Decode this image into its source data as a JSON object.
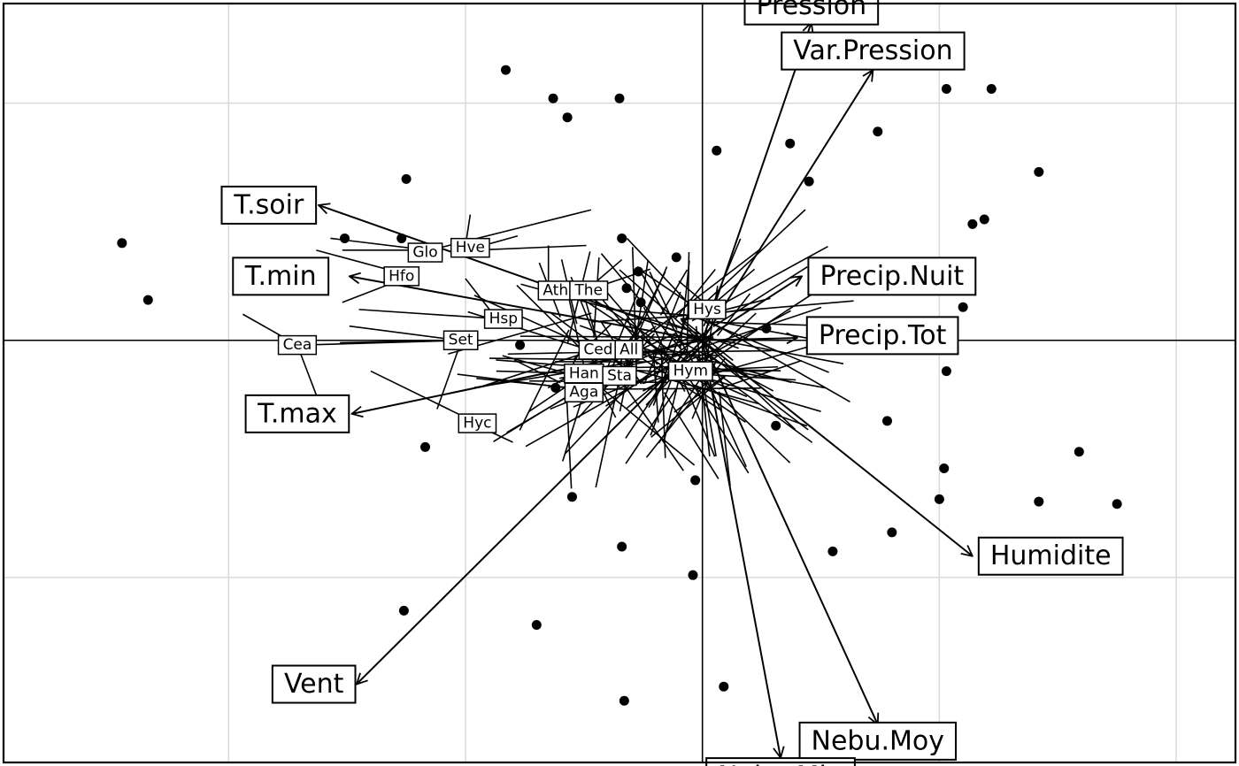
{
  "chart_data": {
    "type": "scatter",
    "title": "",
    "xlabel": "",
    "ylabel": "",
    "xlim": [
      -2.95,
      2.25
    ],
    "ylim": [
      -1.78,
      1.42
    ],
    "grid": true,
    "grid_x": [
      -2,
      -1,
      0,
      1,
      2
    ],
    "grid_y": [
      -1,
      1
    ],
    "axes_through_origin": true,
    "colors": {
      "grid": "#d9d9d9",
      "ink": "#000000",
      "label_bg": "#ffffff"
    },
    "points": [
      {
        "x": -2.45,
        "y": 0.41
      },
      {
        "x": -2.34,
        "y": 0.17
      },
      {
        "x": -1.25,
        "y": 0.68
      },
      {
        "x": -1.27,
        "y": 0.43
      },
      {
        "x": -1.51,
        "y": 0.43
      },
      {
        "x": -0.83,
        "y": 1.14
      },
      {
        "x": -0.63,
        "y": 1.02
      },
      {
        "x": -0.57,
        "y": 0.94
      },
      {
        "x": -0.35,
        "y": 1.02
      },
      {
        "x": -0.34,
        "y": 0.43
      },
      {
        "x": -0.27,
        "y": 0.29
      },
      {
        "x": -0.32,
        "y": 0.22
      },
      {
        "x": -0.26,
        "y": 0.16
      },
      {
        "x": -0.11,
        "y": 0.35
      },
      {
        "x": 0.06,
        "y": 0.8
      },
      {
        "x": 0.37,
        "y": 0.83
      },
      {
        "x": 0.45,
        "y": 0.67
      },
      {
        "x": 0.74,
        "y": 0.88
      },
      {
        "x": 1.03,
        "y": 1.06
      },
      {
        "x": 1.22,
        "y": 1.06
      },
      {
        "x": 1.42,
        "y": 0.71
      },
      {
        "x": 1.19,
        "y": 0.51
      },
      {
        "x": 1.14,
        "y": 0.49
      },
      {
        "x": 1.1,
        "y": 0.14
      },
      {
        "x": 0.27,
        "y": 0.05
      },
      {
        "x": -0.62,
        "y": -0.2
      },
      {
        "x": -0.77,
        "y": -0.02
      },
      {
        "x": -1.17,
        "y": -0.45
      },
      {
        "x": -0.55,
        "y": -0.66
      },
      {
        "x": -0.34,
        "y": -0.87
      },
      {
        "x": -0.03,
        "y": -0.59
      },
      {
        "x": 0.31,
        "y": -0.36
      },
      {
        "x": 0.78,
        "y": -0.34
      },
      {
        "x": 1.02,
        "y": -0.54
      },
      {
        "x": 1.0,
        "y": -0.67
      },
      {
        "x": 1.03,
        "y": -0.13
      },
      {
        "x": 1.59,
        "y": -0.47
      },
      {
        "x": 1.42,
        "y": -0.68
      },
      {
        "x": 1.75,
        "y": -0.69
      },
      {
        "x": 0.8,
        "y": -0.81
      },
      {
        "x": 0.55,
        "y": -0.89
      },
      {
        "x": -0.04,
        "y": -0.99
      },
      {
        "x": -1.26,
        "y": -1.14
      },
      {
        "x": -0.7,
        "y": -1.2
      },
      {
        "x": -0.33,
        "y": -1.52
      },
      {
        "x": 0.09,
        "y": -1.46
      }
    ],
    "arrows": [
      {
        "name": "Pression",
        "x": 0.46,
        "y": 1.34,
        "label_x": 0.46,
        "label_y": 1.41
      },
      {
        "name": "Var.Pression",
        "x": 0.72,
        "y": 1.14,
        "label_x": 0.72,
        "label_y": 1.22
      },
      {
        "name": "T.soir",
        "x": -1.62,
        "y": 0.57,
        "label_x": -1.83,
        "label_y": 0.57
      },
      {
        "name": "T.min",
        "x": -1.49,
        "y": 0.27,
        "label_x": -1.78,
        "label_y": 0.27
      },
      {
        "name": "Precip.Nuit",
        "x": 0.42,
        "y": 0.27,
        "label_x": 0.8,
        "label_y": 0.27
      },
      {
        "name": "Precip.Tot",
        "x": 0.4,
        "y": 0.01,
        "label_x": 0.76,
        "label_y": 0.02
      },
      {
        "name": "T.max",
        "x": -1.48,
        "y": -0.31,
        "label_x": -1.71,
        "label_y": -0.31
      },
      {
        "name": "Humidite",
        "x": 1.14,
        "y": -0.91,
        "label_x": 1.47,
        "label_y": -0.91
      },
      {
        "name": "Vent",
        "x": -1.46,
        "y": -1.45,
        "label_x": -1.64,
        "label_y": -1.45
      },
      {
        "name": "Nebu.Moy",
        "x": 0.74,
        "y": -1.62,
        "label_x": 0.74,
        "label_y": -1.69
      },
      {
        "name": "Nebu.Min",
        "x": 0.33,
        "y": -1.76,
        "label_x": 0.33,
        "label_y": -1.84
      }
    ],
    "species": [
      {
        "name": "Glo",
        "x": -1.17,
        "y": 0.37
      },
      {
        "name": "Hve",
        "x": -0.98,
        "y": 0.39
      },
      {
        "name": "Hfo",
        "x": -1.27,
        "y": 0.27
      },
      {
        "name": "Ath",
        "x": -0.62,
        "y": 0.21
      },
      {
        "name": "The",
        "x": -0.48,
        "y": 0.21
      },
      {
        "name": "Hsp",
        "x": -0.84,
        "y": 0.09
      },
      {
        "name": "Hys",
        "x": 0.02,
        "y": 0.13
      },
      {
        "name": "Cea",
        "x": -1.71,
        "y": -0.02
      },
      {
        "name": "Set",
        "x": -1.02,
        "y": 0.0
      },
      {
        "name": "Ced",
        "x": -0.44,
        "y": -0.04
      },
      {
        "name": "All",
        "x": -0.31,
        "y": -0.04
      },
      {
        "name": "Han",
        "x": -0.5,
        "y": -0.14
      },
      {
        "name": "Hym",
        "x": -0.05,
        "y": -0.13
      },
      {
        "name": "Sta",
        "x": -0.35,
        "y": -0.15
      },
      {
        "name": "Aga",
        "x": -0.5,
        "y": -0.22
      },
      {
        "name": "Hyc",
        "x": -0.95,
        "y": -0.35
      }
    ],
    "species_segments": [
      [
        -1.15,
        0.38,
        -1.52,
        0.38
      ],
      [
        -1.16,
        0.38,
        -1.57,
        0.43
      ],
      [
        -1.19,
        0.37,
        -0.47,
        0.55
      ],
      [
        -1.0,
        0.4,
        -0.98,
        0.53
      ],
      [
        -0.96,
        0.39,
        -0.78,
        0.44
      ],
      [
        -0.96,
        0.38,
        -0.49,
        0.4
      ],
      [
        -1.26,
        0.28,
        -1.63,
        0.38
      ],
      [
        -1.26,
        0.26,
        -1.52,
        0.16
      ],
      [
        -0.65,
        0.21,
        -0.65,
        0.4
      ],
      [
        -0.48,
        0.22,
        -0.34,
        0.34
      ],
      [
        -0.49,
        0.21,
        -0.22,
        0.3
      ],
      [
        -0.85,
        0.09,
        -1.45,
        0.13
      ],
      [
        -0.86,
        0.08,
        -1.0,
        0.26
      ],
      [
        0.02,
        0.13,
        0.22,
        0.3
      ],
      [
        0.03,
        0.14,
        -0.1,
        0.25
      ],
      [
        -1.71,
        -0.02,
        -1.94,
        0.11
      ],
      [
        -1.71,
        -0.02,
        -1.63,
        -0.23
      ],
      [
        -1.69,
        -0.02,
        -1.0,
        0.0
      ],
      [
        -1.03,
        0.0,
        -1.49,
        0.06
      ],
      [
        -1.03,
        0.0,
        -1.53,
        -0.01
      ],
      [
        -1.02,
        -0.01,
        -1.12,
        -0.29
      ],
      [
        -0.45,
        -0.05,
        -0.99,
        0.12
      ],
      [
        -0.43,
        -0.05,
        -0.5,
        0.19
      ],
      [
        -0.3,
        -0.04,
        -0.15,
        0.31
      ],
      [
        -0.5,
        -0.14,
        -0.87,
        -0.13
      ],
      [
        -0.05,
        -0.13,
        0.28,
        -0.13
      ],
      [
        -0.05,
        -0.14,
        0.5,
        -0.3
      ],
      [
        -0.35,
        -0.16,
        -0.45,
        -0.62
      ],
      [
        -0.35,
        -0.16,
        -0.08,
        -0.55
      ],
      [
        -0.5,
        -0.22,
        -0.59,
        -0.51
      ],
      [
        -0.95,
        -0.35,
        -1.4,
        -0.13
      ],
      [
        -0.95,
        -0.36,
        -0.8,
        -0.43
      ]
    ]
  }
}
